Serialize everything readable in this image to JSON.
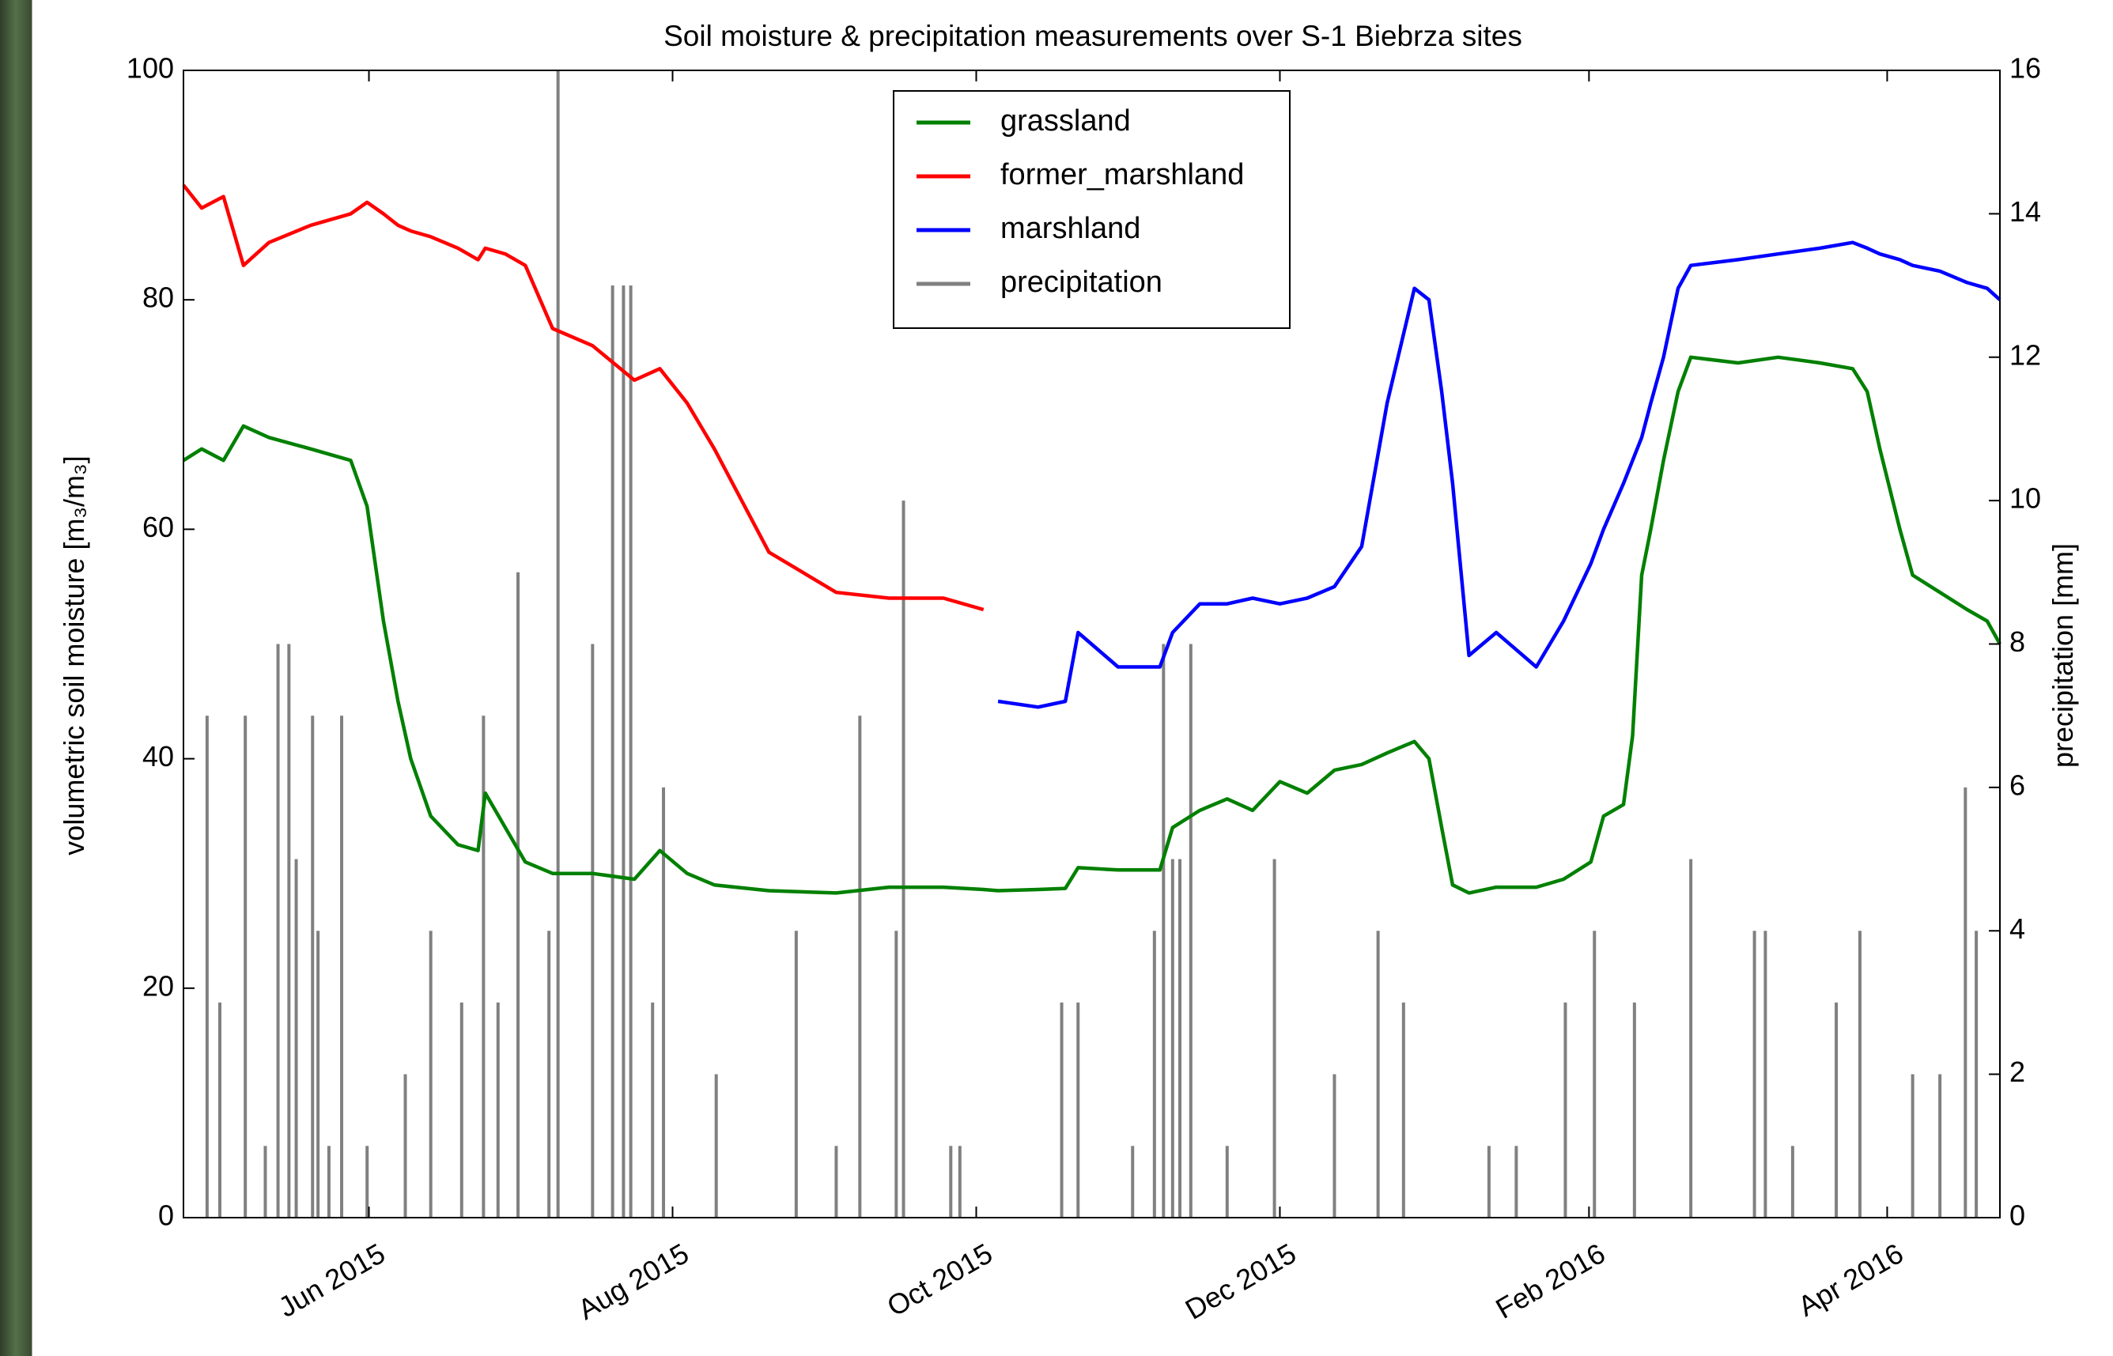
{
  "chart_data": {
    "type": "line",
    "title": "Soil moisture & precipitation measurements over S-1 Biebrza sites",
    "y_label": "volumetric soil moisture [m₃/m₃]",
    "y2_label": "precipitation [mm]",
    "xlim": [
      2015.312,
      2016.311
    ],
    "xticks": [
      {
        "value": 2015.414,
        "label": "Jun 2015"
      },
      {
        "value": 2015.581,
        "label": "Aug 2015"
      },
      {
        "value": 2015.748,
        "label": "Oct 2015"
      },
      {
        "value": 2015.915,
        "label": "Dec 2015"
      },
      {
        "value": 2016.085,
        "label": "Feb 2016"
      },
      {
        "value": 2016.249,
        "label": "Apr 2016"
      }
    ],
    "ylim": [
      0,
      100
    ],
    "yticks": [
      0,
      20,
      40,
      60,
      80,
      100
    ],
    "y2lim": [
      0,
      16
    ],
    "y2ticks": [
      0,
      2,
      4,
      6,
      8,
      10,
      12,
      14,
      16
    ],
    "legend": "top-center",
    "x": [
      2015.312,
      2015.322,
      2015.334,
      2015.345,
      2015.359,
      2015.382,
      2015.404,
      2015.413,
      2015.422,
      2015.43,
      2015.437,
      2015.448,
      2015.463,
      2015.474,
      2015.478,
      2015.489,
      2015.5,
      2015.515,
      2015.537,
      2015.56,
      2015.574,
      2015.589,
      2015.604,
      2015.634,
      2015.671,
      2015.7,
      2015.73,
      2015.752,
      2015.76,
      2015.782,
      2015.797,
      2015.804,
      2015.826,
      2015.849,
      2015.856,
      2015.871,
      2015.886,
      2015.9,
      2015.915,
      2015.93,
      2015.945,
      2015.96,
      2015.974,
      2015.989,
      2015.997,
      2016.004,
      2016.01,
      2016.019,
      2016.034,
      2016.056,
      2016.071,
      2016.086,
      2016.093,
      2016.104,
      2016.109,
      2016.114,
      2016.119,
      2016.126,
      2016.134,
      2016.141,
      2016.167,
      2016.189,
      2016.212,
      2016.23,
      2016.238,
      2016.245,
      2016.256,
      2016.263,
      2016.278,
      2016.293,
      2016.304,
      2016.311
    ],
    "series": [
      {
        "name": "grassland",
        "color": "#008000",
        "values": [
          66,
          67,
          66,
          69,
          68,
          67,
          66,
          62,
          52,
          45,
          40,
          35,
          32.5,
          32,
          37,
          34,
          31,
          30,
          30,
          29.5,
          32,
          30,
          29,
          28.5,
          28.3,
          28.8,
          28.8,
          28.6,
          28.5,
          28.6,
          28.7,
          30.5,
          30.3,
          30.3,
          34,
          35.5,
          36.5,
          35.5,
          38,
          37,
          39,
          39.5,
          40.5,
          41.5,
          40,
          34,
          29,
          28.3,
          28.8,
          28.8,
          29.5,
          31,
          35,
          36,
          42,
          56,
          60,
          66,
          72,
          75,
          74.5,
          75,
          74.5,
          74,
          72,
          67,
          60,
          56,
          54.5,
          53,
          52,
          50
        ]
      },
      {
        "name": "former_marshland",
        "color": "#ff0000",
        "values": [
          90,
          88,
          89,
          83,
          85,
          86.5,
          87.5,
          88.5,
          87.5,
          86.5,
          86,
          85.5,
          84.5,
          83.5,
          84.5,
          84,
          83,
          77.5,
          76,
          73,
          74,
          71,
          67,
          58,
          54.5,
          54,
          54,
          53,
          null,
          null,
          null,
          null,
          null,
          null,
          null,
          null,
          null,
          null,
          null,
          null,
          null,
          null,
          null,
          null,
          null,
          null,
          null,
          null,
          null,
          null,
          null,
          null,
          null,
          null,
          null,
          null,
          null,
          null,
          null,
          null,
          null,
          null,
          null,
          null,
          null,
          null,
          null,
          null,
          null,
          null,
          null,
          null
        ]
      },
      {
        "name": "marshland",
        "color": "#0000ff",
        "values": [
          null,
          null,
          null,
          null,
          null,
          null,
          null,
          null,
          null,
          null,
          null,
          null,
          null,
          null,
          null,
          null,
          null,
          null,
          null,
          null,
          null,
          null,
          null,
          null,
          null,
          null,
          null,
          null,
          45,
          44.5,
          45,
          51,
          48,
          48,
          51,
          53.5,
          53.5,
          54,
          53.5,
          54,
          55,
          58.5,
          71,
          81,
          80,
          72,
          64,
          49,
          51,
          48,
          52,
          57,
          60,
          64,
          66,
          68,
          71,
          75,
          81,
          83,
          83.5,
          84,
          84.5,
          85,
          84.5,
          84,
          83.5,
          83,
          82.5,
          81.5,
          81,
          80
        ]
      },
      {
        "name": "precipitation",
        "color": "#808080",
        "type": "bar",
        "axis": "y2",
        "x": [
          2015.325,
          2015.332,
          2015.346,
          2015.357,
          2015.364,
          2015.37,
          2015.374,
          2015.383,
          2015.386,
          2015.392,
          2015.399,
          2015.413,
          2015.434,
          2015.448,
          2015.465,
          2015.477,
          2015.485,
          2015.496,
          2015.513,
          2015.518,
          2015.537,
          2015.548,
          2015.554,
          2015.558,
          2015.57,
          2015.576,
          2015.605,
          2015.649,
          2015.671,
          2015.684,
          2015.704,
          2015.708,
          2015.734,
          2015.739,
          2015.795,
          2015.804,
          2015.834,
          2015.846,
          2015.851,
          2015.856,
          2015.86,
          2015.866,
          2015.886,
          2015.912,
          2015.945,
          2015.969,
          2015.983,
          2016.03,
          2016.045,
          2016.072,
          2016.088,
          2016.11,
          2016.141,
          2016.176,
          2016.182,
          2016.197,
          2016.221,
          2016.234,
          2016.263,
          2016.278,
          2016.292,
          2016.298
        ],
        "values": [
          7,
          3,
          7,
          1,
          8,
          8,
          5,
          7,
          4,
          1,
          7,
          1,
          2,
          4,
          3,
          7,
          3,
          9,
          4,
          16,
          8,
          13,
          13,
          13,
          3,
          6,
          2,
          4,
          1,
          7,
          4,
          10,
          1,
          1,
          3,
          3,
          1,
          4,
          8,
          5,
          5,
          8,
          1,
          5,
          2,
          4,
          3,
          1,
          1,
          3,
          4,
          3,
          5,
          4,
          4,
          1,
          3,
          4,
          2,
          2,
          6,
          4
        ]
      }
    ]
  }
}
